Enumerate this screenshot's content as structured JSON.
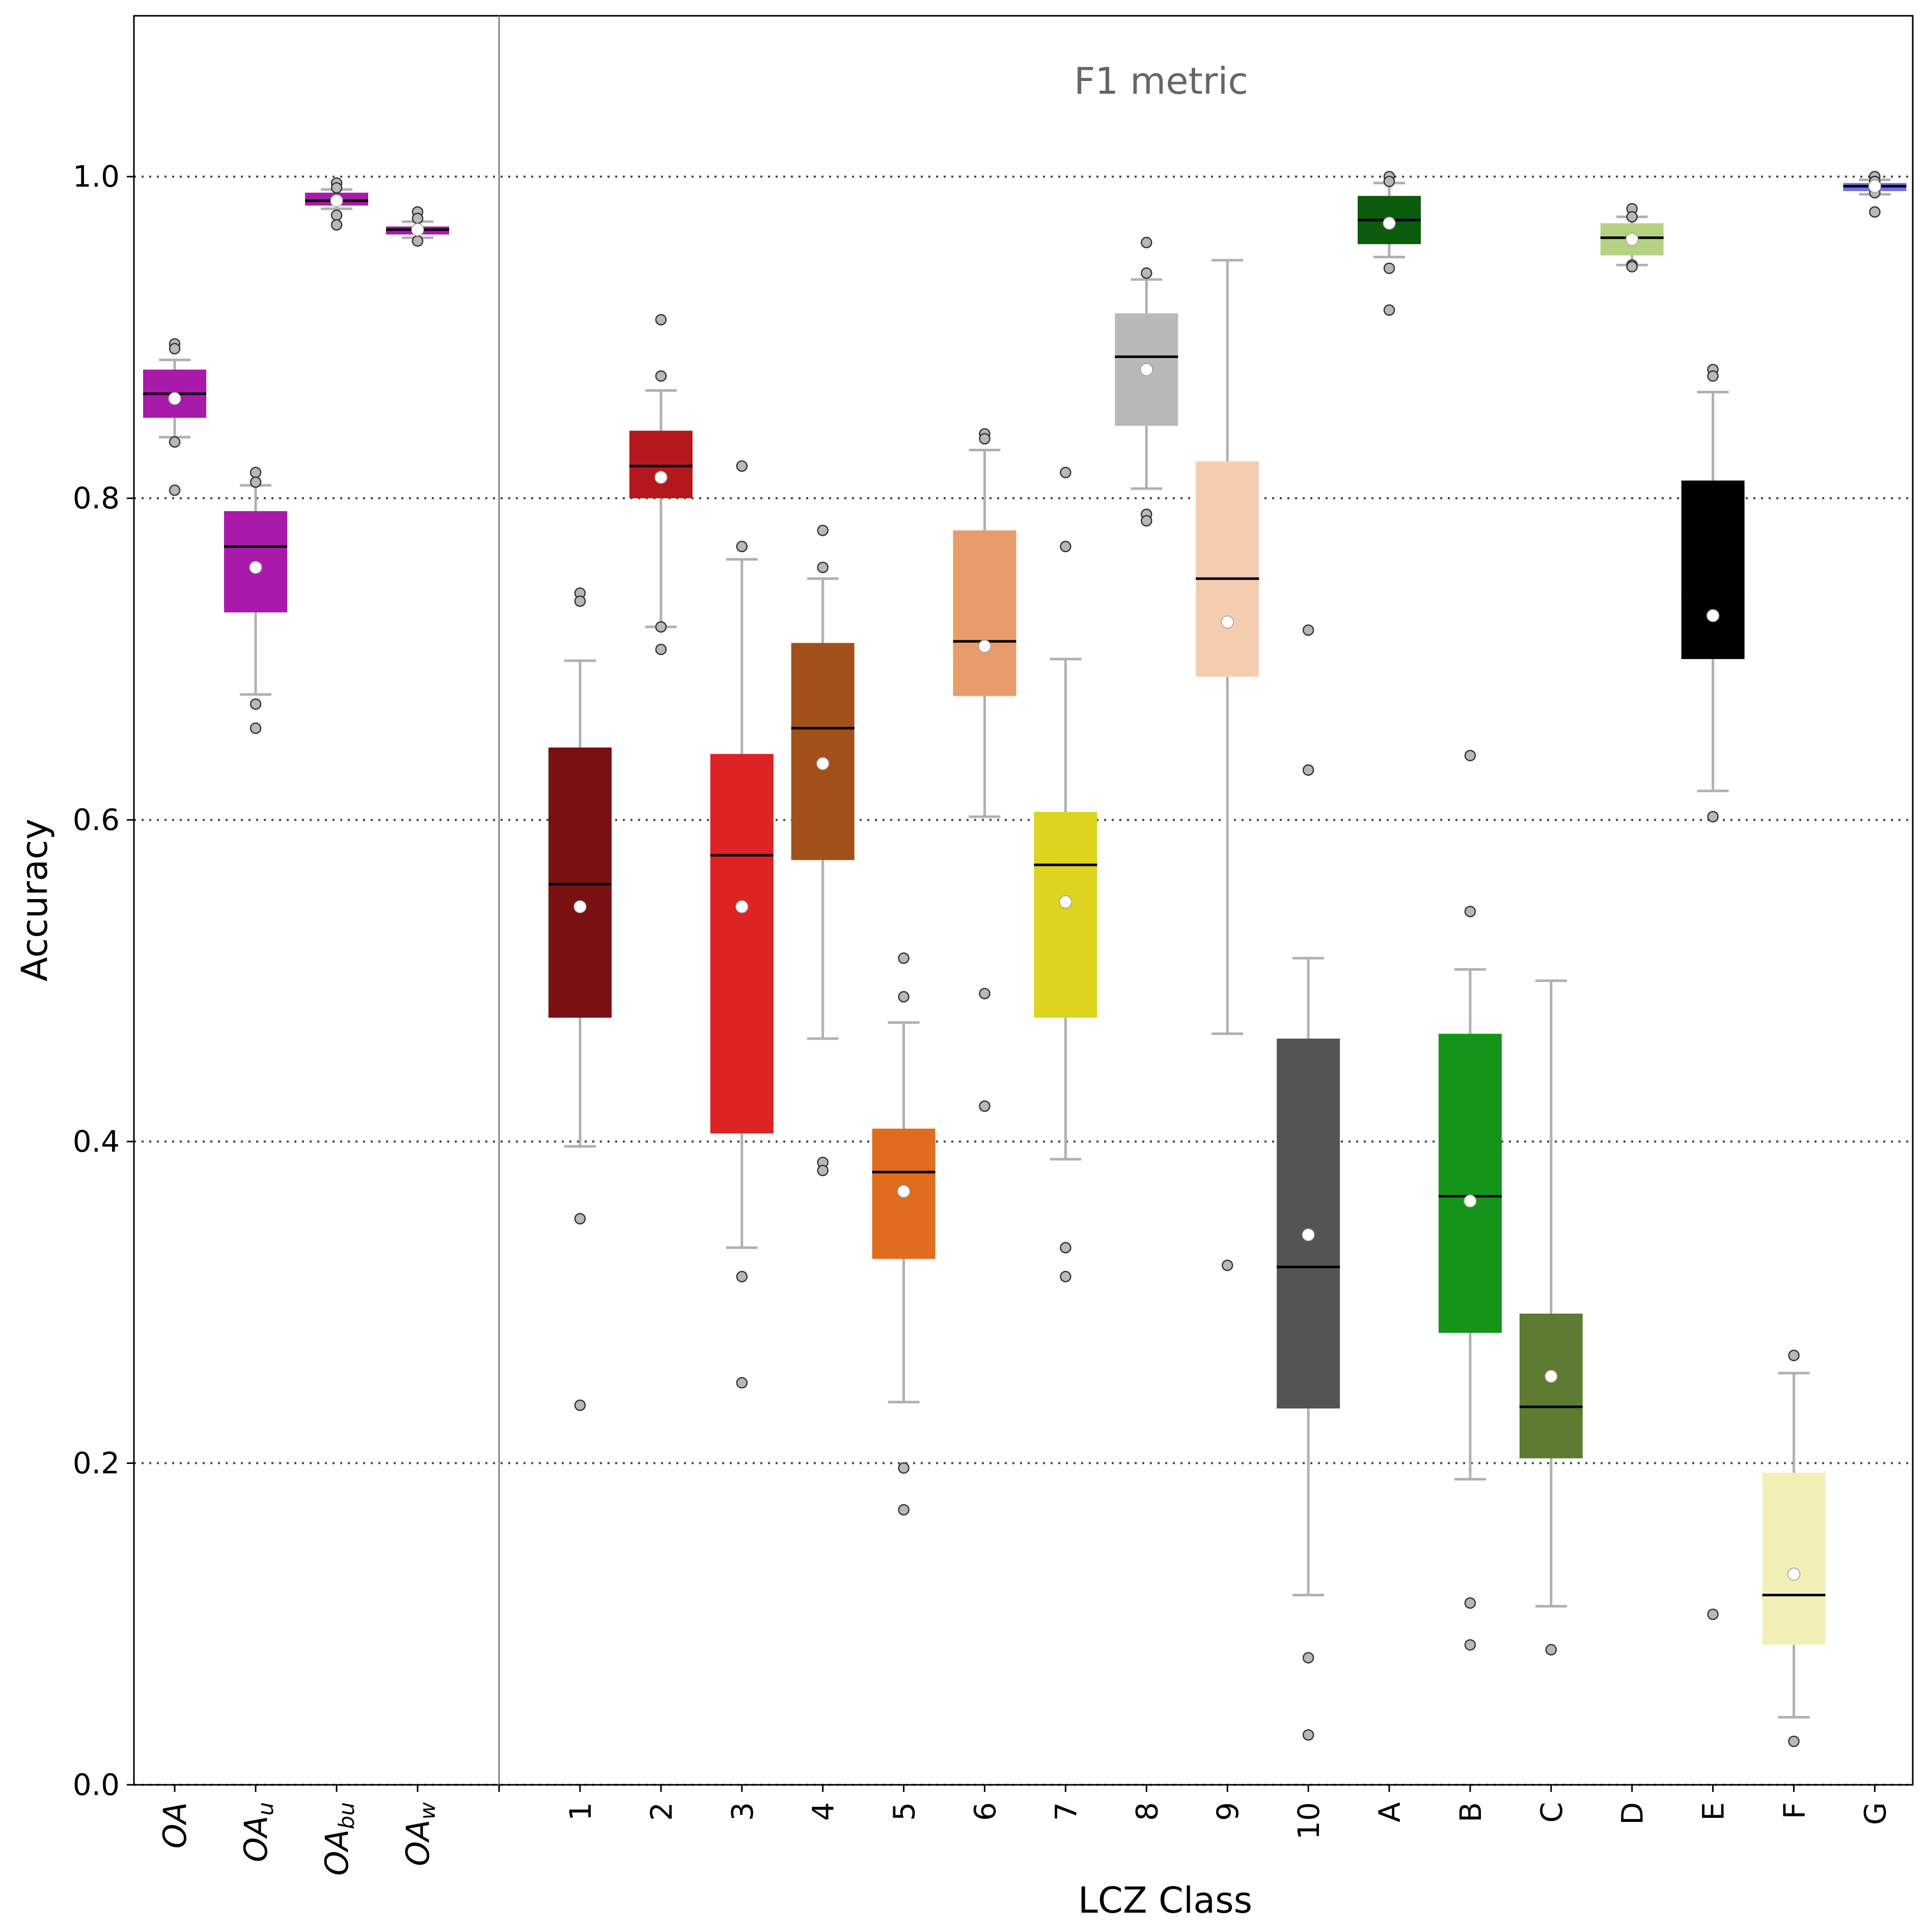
{
  "chart_data": {
    "type": "box",
    "annotation": "F1 metric",
    "xlabel": "LCZ Class",
    "ylabel": "Accuracy",
    "ylim": [
      0.0,
      1.1
    ],
    "yticks": [
      "0.0",
      "0.2",
      "0.4",
      "0.6",
      "0.8",
      "1.0"
    ],
    "grid": "horizontal dotted at 0.2 steps",
    "overall_group": [
      {
        "base": "OA",
        "sub": "",
        "color": "#a91aaa",
        "whisker_low": 0.838,
        "q1": 0.85,
        "median": 0.865,
        "q3": 0.88,
        "whisker_high": 0.886,
        "mean": 0.862,
        "outliers": [
          0.896,
          0.893,
          0.835,
          0.805
        ]
      },
      {
        "base": "OA",
        "sub": "u",
        "color": "#a91aaa",
        "whisker_low": 0.678,
        "q1": 0.729,
        "median": 0.77,
        "q3": 0.792,
        "whisker_high": 0.808,
        "mean": 0.757,
        "outliers": [
          0.816,
          0.81,
          0.672,
          0.657
        ]
      },
      {
        "base": "OA",
        "sub": "bu",
        "color": "#a91aaa",
        "whisker_low": 0.98,
        "q1": 0.982,
        "median": 0.985,
        "q3": 0.99,
        "whisker_high": 0.992,
        "mean": 0.985,
        "outliers": [
          0.996,
          0.993,
          0.976,
          0.97
        ]
      },
      {
        "base": "OA",
        "sub": "w",
        "color": "#a91aaa",
        "whisker_low": 0.962,
        "q1": 0.964,
        "median": 0.967,
        "q3": 0.969,
        "whisker_high": 0.972,
        "mean": 0.967,
        "outliers": [
          0.978,
          0.974,
          0.96,
          0.96
        ]
      }
    ],
    "classes": [
      {
        "label": "1",
        "color": "#7b1012",
        "whisker_low": 0.397,
        "q1": 0.477,
        "median": 0.56,
        "q3": 0.645,
        "whisker_high": 0.699,
        "mean": 0.546,
        "outliers": [
          0.741,
          0.736,
          0.352,
          0.236
        ]
      },
      {
        "label": "2",
        "color": "#b5181c",
        "whisker_low": 0.72,
        "q1": 0.8,
        "median": 0.82,
        "q3": 0.842,
        "whisker_high": 0.867,
        "mean": 0.813,
        "outliers": [
          0.911,
          0.876,
          0.72,
          0.706
        ]
      },
      {
        "label": "3",
        "color": "#dd2324",
        "whisker_low": 0.334,
        "q1": 0.405,
        "median": 0.578,
        "q3": 0.641,
        "whisker_high": 0.762,
        "mean": 0.546,
        "outliers": [
          0.82,
          0.77,
          0.316,
          0.25
        ]
      },
      {
        "label": "4",
        "color": "#a2501a",
        "whisker_low": 0.464,
        "q1": 0.575,
        "median": 0.657,
        "q3": 0.71,
        "whisker_high": 0.75,
        "mean": 0.635,
        "outliers": [
          0.78,
          0.757,
          0.387,
          0.382
        ]
      },
      {
        "label": "5",
        "color": "#e06c20",
        "whisker_low": 0.238,
        "q1": 0.327,
        "median": 0.381,
        "q3": 0.408,
        "whisker_high": 0.474,
        "mean": 0.369,
        "outliers": [
          0.514,
          0.49,
          0.197,
          0.171
        ]
      },
      {
        "label": "6",
        "color": "#e89c6b",
        "whisker_low": 0.602,
        "q1": 0.677,
        "median": 0.711,
        "q3": 0.78,
        "whisker_high": 0.83,
        "mean": 0.708,
        "outliers": [
          0.84,
          0.837,
          0.492,
          0.422
        ]
      },
      {
        "label": "7",
        "color": "#dcd41e",
        "whisker_low": 0.389,
        "q1": 0.477,
        "median": 0.572,
        "q3": 0.605,
        "whisker_high": 0.7,
        "mean": 0.549,
        "outliers": [
          0.816,
          0.77,
          0.334,
          0.316
        ]
      },
      {
        "label": "8",
        "color": "#b9b9b9",
        "whisker_low": 0.806,
        "q1": 0.845,
        "median": 0.888,
        "q3": 0.915,
        "whisker_high": 0.936,
        "mean": 0.88,
        "outliers": [
          0.959,
          0.94,
          0.79,
          0.786
        ]
      },
      {
        "label": "9",
        "color": "#f4cdb1",
        "whisker_low": 0.467,
        "q1": 0.689,
        "median": 0.75,
        "q3": 0.823,
        "whisker_high": 0.948,
        "mean": 0.723,
        "outliers": [
          0.323
        ]
      },
      {
        "label": "10",
        "color": "#545454",
        "whisker_low": 0.118,
        "q1": 0.234,
        "median": 0.322,
        "q3": 0.464,
        "whisker_high": 0.514,
        "mean": 0.342,
        "outliers": [
          0.718,
          0.631,
          0.079,
          0.031
        ]
      },
      {
        "label": "A",
        "color": "#0d5b0c",
        "whisker_low": 0.95,
        "q1": 0.958,
        "median": 0.973,
        "q3": 0.988,
        "whisker_high": 0.996,
        "mean": 0.971,
        "outliers": [
          1.0,
          0.997,
          0.943,
          0.917
        ]
      },
      {
        "label": "B",
        "color": "#14951a",
        "whisker_low": 0.19,
        "q1": 0.281,
        "median": 0.366,
        "q3": 0.467,
        "whisker_high": 0.507,
        "mean": 0.363,
        "outliers": [
          0.64,
          0.543,
          0.113,
          0.087
        ]
      },
      {
        "label": "C",
        "color": "#5d7b31",
        "whisker_low": 0.111,
        "q1": 0.203,
        "median": 0.235,
        "q3": 0.293,
        "whisker_high": 0.5,
        "mean": 0.254,
        "outliers": [
          0.084
        ]
      },
      {
        "label": "D",
        "color": "#b5d282",
        "whisker_low": 0.945,
        "q1": 0.951,
        "median": 0.962,
        "q3": 0.971,
        "whisker_high": 0.975,
        "mean": 0.961,
        "outliers": [
          0.98,
          0.975,
          0.945,
          0.944
        ]
      },
      {
        "label": "E",
        "color": "#000000",
        "whisker_low": 0.618,
        "q1": 0.7,
        "median": 0.739,
        "q3": 0.811,
        "whisker_high": 0.866,
        "mean": 0.727,
        "outliers": [
          0.88,
          0.876,
          0.602,
          0.106
        ]
      },
      {
        "label": "F",
        "color": "#f2efb6",
        "whisker_low": 0.042,
        "q1": 0.087,
        "median": 0.118,
        "q3": 0.194,
        "whisker_high": 0.256,
        "mean": 0.131,
        "outliers": [
          0.267,
          0.027
        ]
      },
      {
        "label": "G",
        "color": "#7070e8",
        "whisker_low": 0.989,
        "q1": 0.991,
        "median": 0.994,
        "q3": 0.996,
        "whisker_high": 0.998,
        "mean": 0.994,
        "outliers": [
          1.0,
          0.997,
          0.99,
          0.978
        ]
      }
    ]
  }
}
